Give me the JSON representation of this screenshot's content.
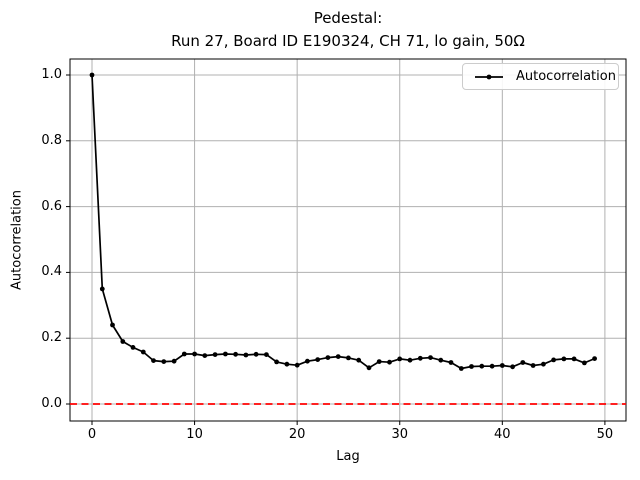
{
  "title": {
    "line1": "Pedestal:",
    "line2": "Run 27, Board ID E190324, CH 71, lo gain, 50Ω"
  },
  "axes": {
    "xlabel": "Lag",
    "ylabel": "Autocorrelation",
    "xticks": [
      0,
      10,
      20,
      30,
      40,
      50
    ],
    "ytick_labels": [
      "0.0",
      "0.2",
      "0.4",
      "0.6",
      "0.8",
      "1.0"
    ],
    "ytick_values": [
      0.0,
      0.2,
      0.4,
      0.6,
      0.8,
      1.0
    ]
  },
  "legend": {
    "label": "Autocorrelation",
    "position": "upper right"
  },
  "colors": {
    "line": "#000000",
    "marker": "#000000",
    "zero_line": "#ff0000",
    "grid": "#b0b0b0",
    "spine": "#000000",
    "tick": "#000000",
    "legend_border": "#cccccc",
    "background": "#ffffff"
  },
  "chart_data": {
    "type": "line",
    "title": "Pedestal:\nRun 27, Board ID E190324, CH 71, lo gain, 50Ω",
    "xlabel": "Lag",
    "ylabel": "Autocorrelation",
    "xlim": [
      -2.15,
      52.05
    ],
    "ylim": [
      -0.055,
      1.049
    ],
    "grid": true,
    "legend_position": "upper right",
    "series": [
      {
        "name": "Autocorrelation",
        "style": "line+markers",
        "color": "#000000",
        "x": [
          0,
          1,
          2,
          3,
          4,
          5,
          6,
          7,
          8,
          9,
          10,
          11,
          12,
          13,
          14,
          15,
          16,
          17,
          18,
          19,
          20,
          21,
          22,
          23,
          24,
          25,
          26,
          27,
          28,
          29,
          30,
          31,
          32,
          33,
          34,
          35,
          36,
          37,
          38,
          39,
          40,
          41,
          42,
          43,
          44,
          45,
          46,
          47,
          48,
          49
        ],
        "y": [
          1.0,
          0.35,
          0.24,
          0.19,
          0.172,
          0.158,
          0.132,
          0.129,
          0.13,
          0.152,
          0.152,
          0.147,
          0.15,
          0.152,
          0.151,
          0.149,
          0.151,
          0.15,
          0.128,
          0.121,
          0.118,
          0.13,
          0.135,
          0.141,
          0.144,
          0.14,
          0.133,
          0.11,
          0.129,
          0.127,
          0.137,
          0.133,
          0.139,
          0.141,
          0.133,
          0.126,
          0.108,
          0.114,
          0.115,
          0.115,
          0.117,
          0.113,
          0.126,
          0.117,
          0.121,
          0.134,
          0.137,
          0.137,
          0.125,
          0.138
        ]
      },
      {
        "name": "zero-reference-line",
        "style": "dashed-horizontal",
        "color": "#ff0000",
        "y_value": 0.0
      }
    ]
  }
}
